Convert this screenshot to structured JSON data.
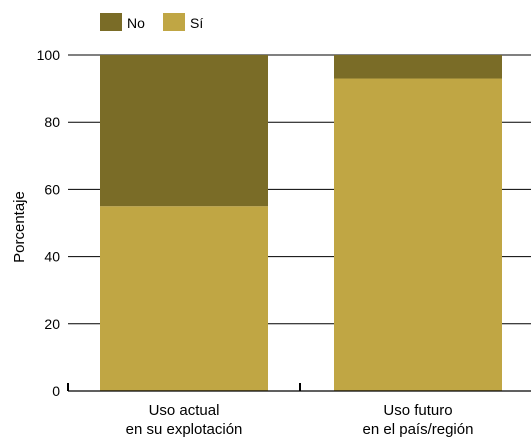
{
  "chart_data": {
    "type": "bar",
    "stacked": true,
    "percent": true,
    "categories": [
      [
        "Uso actual",
        "en su explotación"
      ],
      [
        "Uso futuro",
        "en el país/región"
      ]
    ],
    "series": [
      {
        "name": "Sí",
        "values": [
          55,
          93
        ],
        "color": "#c0a644"
      },
      {
        "name": "No",
        "values": [
          45,
          7
        ],
        "color": "#7a6c27"
      }
    ],
    "legend_order": [
      "No",
      "Sí"
    ],
    "legend_position": "top-left",
    "ylabel": "Porcentaje",
    "xlabel": "",
    "ylim": [
      0,
      100
    ],
    "yticks": [
      0,
      20,
      40,
      60,
      80,
      100
    ],
    "grid": "horizontal"
  }
}
